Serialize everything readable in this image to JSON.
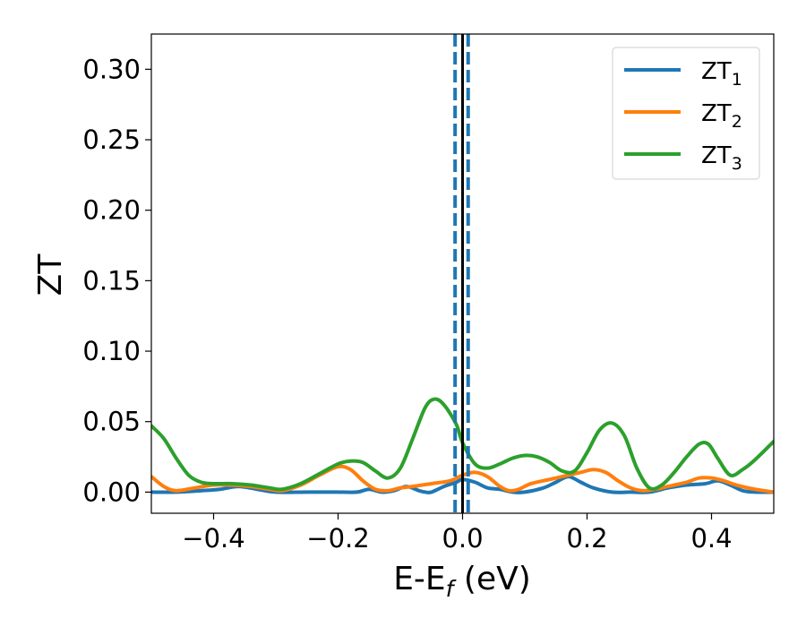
{
  "chart_data": {
    "type": "line",
    "xlabel": "E-E",
    "xlabel_sub": "f",
    "xlabel_unit": " (eV)",
    "ylabel": "ZT",
    "xlim": [
      -0.5,
      0.5
    ],
    "ylim": [
      -0.015,
      0.325
    ],
    "grid": false,
    "legend_position": "top-right",
    "x_ticks": [
      -0.4,
      -0.2,
      0.0,
      0.2,
      0.4
    ],
    "x_tick_labels": [
      "−0.4",
      "−0.2",
      "0.0",
      "0.2",
      "0.4"
    ],
    "y_ticks": [
      0.0,
      0.05,
      0.1,
      0.15,
      0.2,
      0.25,
      0.3
    ],
    "y_tick_labels": [
      "0.00",
      "0.05",
      "0.10",
      "0.15",
      "0.20",
      "0.25",
      "0.30"
    ],
    "vlines": [
      {
        "x": -0.012,
        "style": "dashed",
        "color": "#1f77b4"
      },
      {
        "x": 0.0,
        "style": "solid",
        "color": "#000000"
      },
      {
        "x": 0.009,
        "style": "dashed",
        "color": "#1f77b4"
      }
    ],
    "series": [
      {
        "name": "ZT",
        "name_sub": "1",
        "color": "#1f77b4",
        "points": [
          [
            -0.5,
            0.0
          ],
          [
            -0.46,
            0.0
          ],
          [
            -0.42,
            0.001
          ],
          [
            -0.39,
            0.002
          ],
          [
            -0.36,
            0.004
          ],
          [
            -0.33,
            0.002
          ],
          [
            -0.3,
            0.0
          ],
          [
            -0.25,
            0.0
          ],
          [
            -0.2,
            0.0
          ],
          [
            -0.17,
            0.0
          ],
          [
            -0.15,
            0.002
          ],
          [
            -0.13,
            0.0
          ],
          [
            -0.11,
            0.001
          ],
          [
            -0.09,
            0.004
          ],
          [
            -0.07,
            0.001
          ],
          [
            -0.06,
            0.0
          ],
          [
            -0.05,
            0.0
          ],
          [
            -0.03,
            0.004
          ],
          [
            -0.01,
            0.007
          ],
          [
            0.0,
            0.009
          ],
          [
            0.02,
            0.007
          ],
          [
            0.04,
            0.003
          ],
          [
            0.06,
            0.002
          ],
          [
            0.08,
            0.0
          ],
          [
            0.1,
            0.0
          ],
          [
            0.13,
            0.003
          ],
          [
            0.15,
            0.007
          ],
          [
            0.17,
            0.011
          ],
          [
            0.19,
            0.007
          ],
          [
            0.21,
            0.003
          ],
          [
            0.24,
            0.0
          ],
          [
            0.27,
            0.0
          ],
          [
            0.3,
            0.0
          ],
          [
            0.33,
            0.003
          ],
          [
            0.36,
            0.005
          ],
          [
            0.39,
            0.006
          ],
          [
            0.41,
            0.008
          ],
          [
            0.43,
            0.005
          ],
          [
            0.45,
            0.001
          ],
          [
            0.47,
            0.0
          ],
          [
            0.5,
            0.0
          ]
        ]
      },
      {
        "name": "ZT",
        "name_sub": "2",
        "color": "#ff7f0e",
        "points": [
          [
            -0.5,
            0.011
          ],
          [
            -0.48,
            0.004
          ],
          [
            -0.46,
            0.001
          ],
          [
            -0.43,
            0.003
          ],
          [
            -0.4,
            0.005
          ],
          [
            -0.37,
            0.005
          ],
          [
            -0.34,
            0.004
          ],
          [
            -0.31,
            0.002
          ],
          [
            -0.29,
            0.001
          ],
          [
            -0.26,
            0.005
          ],
          [
            -0.23,
            0.012
          ],
          [
            -0.2,
            0.018
          ],
          [
            -0.18,
            0.016
          ],
          [
            -0.16,
            0.008
          ],
          [
            -0.14,
            0.002
          ],
          [
            -0.12,
            0.001
          ],
          [
            -0.1,
            0.003
          ],
          [
            -0.08,
            0.004
          ],
          [
            -0.05,
            0.006
          ],
          [
            -0.02,
            0.008
          ],
          [
            0.0,
            0.012
          ],
          [
            0.02,
            0.014
          ],
          [
            0.04,
            0.011
          ],
          [
            0.06,
            0.004
          ],
          [
            0.075,
            0.001
          ],
          [
            0.09,
            0.002
          ],
          [
            0.11,
            0.006
          ],
          [
            0.14,
            0.009
          ],
          [
            0.16,
            0.011
          ],
          [
            0.19,
            0.014
          ],
          [
            0.21,
            0.016
          ],
          [
            0.23,
            0.014
          ],
          [
            0.25,
            0.008
          ],
          [
            0.27,
            0.003
          ],
          [
            0.29,
            0.001
          ],
          [
            0.31,
            0.002
          ],
          [
            0.33,
            0.004
          ],
          [
            0.36,
            0.007
          ],
          [
            0.38,
            0.01
          ],
          [
            0.4,
            0.01
          ],
          [
            0.42,
            0.008
          ],
          [
            0.44,
            0.005
          ],
          [
            0.47,
            0.002
          ],
          [
            0.5,
            0.0
          ]
        ]
      },
      {
        "name": "ZT",
        "name_sub": "3",
        "color": "#2ca02c",
        "points": [
          [
            -0.5,
            0.047
          ],
          [
            -0.48,
            0.038
          ],
          [
            -0.46,
            0.024
          ],
          [
            -0.44,
            0.012
          ],
          [
            -0.42,
            0.007
          ],
          [
            -0.4,
            0.006
          ],
          [
            -0.37,
            0.006
          ],
          [
            -0.34,
            0.005
          ],
          [
            -0.31,
            0.003
          ],
          [
            -0.29,
            0.002
          ],
          [
            -0.26,
            0.006
          ],
          [
            -0.23,
            0.013
          ],
          [
            -0.2,
            0.02
          ],
          [
            -0.18,
            0.022
          ],
          [
            -0.16,
            0.021
          ],
          [
            -0.14,
            0.015
          ],
          [
            -0.12,
            0.01
          ],
          [
            -0.1,
            0.017
          ],
          [
            -0.08,
            0.038
          ],
          [
            -0.06,
            0.06
          ],
          [
            -0.045,
            0.066
          ],
          [
            -0.03,
            0.062
          ],
          [
            -0.01,
            0.048
          ],
          [
            0.0,
            0.035
          ],
          [
            0.02,
            0.02
          ],
          [
            0.04,
            0.017
          ],
          [
            0.06,
            0.02
          ],
          [
            0.08,
            0.024
          ],
          [
            0.1,
            0.026
          ],
          [
            0.12,
            0.025
          ],
          [
            0.14,
            0.021
          ],
          [
            0.16,
            0.015
          ],
          [
            0.18,
            0.015
          ],
          [
            0.2,
            0.028
          ],
          [
            0.22,
            0.044
          ],
          [
            0.24,
            0.049
          ],
          [
            0.26,
            0.04
          ],
          [
            0.28,
            0.017
          ],
          [
            0.3,
            0.003
          ],
          [
            0.32,
            0.005
          ],
          [
            0.34,
            0.014
          ],
          [
            0.36,
            0.025
          ],
          [
            0.38,
            0.034
          ],
          [
            0.395,
            0.034
          ],
          [
            0.41,
            0.024
          ],
          [
            0.43,
            0.012
          ],
          [
            0.45,
            0.016
          ],
          [
            0.47,
            0.023
          ],
          [
            0.5,
            0.036
          ]
        ]
      }
    ]
  }
}
